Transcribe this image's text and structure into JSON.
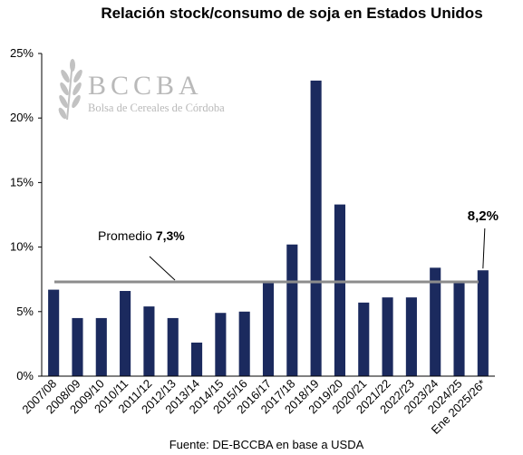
{
  "chart_data": {
    "type": "bar",
    "title": "Relación stock/consumo de soja en Estados Unidos",
    "categories": [
      "2007/08",
      "2008/09",
      "2009/10",
      "2010/11",
      "2011/12",
      "2012/13",
      "2013/14",
      "2014/15",
      "2015/16",
      "2016/17",
      "2017/18",
      "2018/19",
      "2019/20",
      "2020/21",
      "2021/22",
      "2022/23",
      "2023/24",
      "2024/25",
      "Ene 2025/26*"
    ],
    "values": [
      6.7,
      4.5,
      4.5,
      6.6,
      5.4,
      4.5,
      2.6,
      4.9,
      5.0,
      7.3,
      10.2,
      22.9,
      13.3,
      5.7,
      6.1,
      6.1,
      8.4,
      7.2,
      8.2
    ],
    "ylim": [
      0,
      25
    ],
    "yticks": [
      0,
      5,
      10,
      15,
      20,
      25
    ],
    "ytick_labels": [
      "0%",
      "5%",
      "10%",
      "15%",
      "20%",
      "25%"
    ],
    "xlabel": "",
    "ylabel": "",
    "bar_color": "#1b2a5e",
    "average": {
      "value": 7.3,
      "label_prefix": "Promedio ",
      "label_value": "7,3%",
      "color": "#8c8c8c"
    },
    "last_bar_label": "8,2%",
    "grid": false,
    "legend": "none"
  },
  "watermark": {
    "text": "BCCBA",
    "subtitle": "Bolsa de Cereales de Córdoba",
    "color": "#b9b9b9",
    "icon": "wheat-icon"
  },
  "source": "Fuente: DE-BCCBA en base a USDA"
}
